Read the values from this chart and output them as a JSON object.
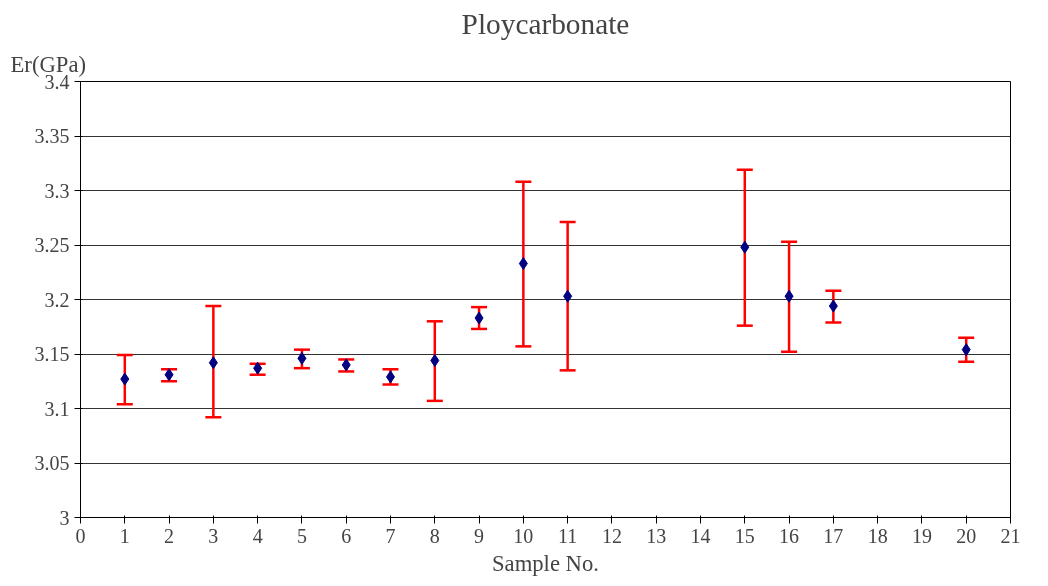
{
  "chart_data": {
    "type": "scatter",
    "title": "Ploycarbonate",
    "xlabel": "Sample No.",
    "ylabel": "Er(GPa)",
    "x": [
      1,
      2,
      3,
      4,
      5,
      6,
      7,
      8,
      9,
      10,
      11,
      15,
      16,
      17,
      20
    ],
    "series": [
      {
        "color": "#000080",
        "values": [
          3.127,
          3.131,
          3.142,
          3.137,
          3.146,
          3.14,
          3.129,
          3.144,
          3.183,
          3.233,
          3.203,
          3.248,
          3.203,
          3.194,
          3.154
        ],
        "errors": [
          [
            3.104,
            3.149
          ],
          [
            3.125,
            3.136
          ],
          [
            3.092,
            3.194
          ],
          [
            3.131,
            3.141
          ],
          [
            3.137,
            3.154
          ],
          [
            3.134,
            3.145
          ],
          [
            3.122,
            3.136
          ],
          [
            3.107,
            3.18
          ],
          [
            3.173,
            3.193
          ],
          [
            3.157,
            3.308
          ],
          [
            3.135,
            3.271
          ],
          [
            3.176,
            3.319
          ],
          [
            3.152,
            3.253
          ],
          [
            3.179,
            3.208
          ],
          [
            3.143,
            3.165
          ]
        ]
      }
    ],
    "xlim": [
      0,
      21
    ],
    "xticks": [
      0,
      1,
      2,
      3,
      4,
      5,
      6,
      7,
      8,
      9,
      10,
      11,
      12,
      13,
      14,
      15,
      16,
      17,
      18,
      19,
      20,
      21
    ],
    "ylim": [
      3,
      3.4
    ],
    "yticks": [
      3,
      3.05,
      3.1,
      3.15,
      3.2,
      3.25,
      3.3,
      3.35,
      3.4
    ],
    "grid": "y",
    "marker": "diamond"
  }
}
